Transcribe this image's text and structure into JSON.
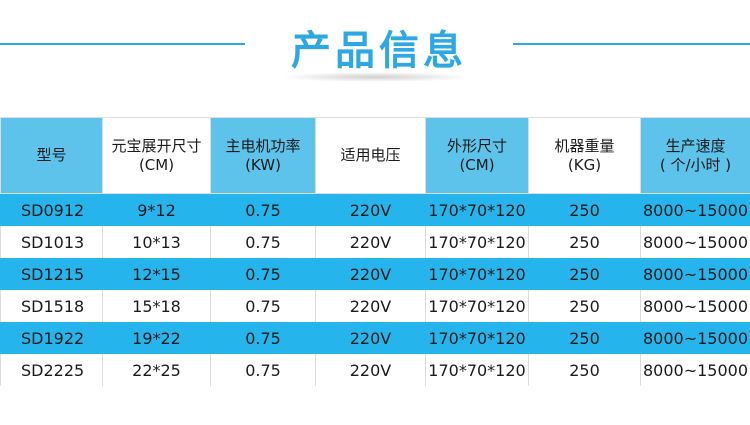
{
  "header": {
    "title": "产品信息"
  },
  "table": {
    "headers": [
      {
        "line1": "型号",
        "line2": ""
      },
      {
        "line1": "元宝展开尺寸",
        "line2": "(CM)"
      },
      {
        "line1": "主电机功率",
        "line2": "(KW)"
      },
      {
        "line1": "适用电压",
        "line2": ""
      },
      {
        "line1": "外形尺寸",
        "line2": "(CM)"
      },
      {
        "line1": "机器重量",
        "line2": "(KG)"
      },
      {
        "line1": "生产速度",
        "line2": "( 个/小时 )"
      }
    ],
    "rows": [
      [
        "SD0912",
        "9*12",
        "0.75",
        "220V",
        "170*70*120",
        "250",
        "8000~15000"
      ],
      [
        "SD1013",
        "10*13",
        "0.75",
        "220V",
        "170*70*120",
        "250",
        "8000~15000"
      ],
      [
        "SD1215",
        "12*15",
        "0.75",
        "220V",
        "170*70*120",
        "250",
        "8000~15000"
      ],
      [
        "SD1518",
        "15*18",
        "0.75",
        "220V",
        "170*70*120",
        "250",
        "8000~15000"
      ],
      [
        "SD1922",
        "19*22",
        "0.75",
        "220V",
        "170*70*120",
        "250",
        "8000~15000"
      ],
      [
        "SD2225",
        "22*25",
        "0.75",
        "220V",
        "170*70*120",
        "250",
        "8000~15000"
      ]
    ]
  },
  "colors": {
    "accent": "#2ea8e3",
    "header_blue": "#5ec3eb",
    "row_blue": "#26b4ec",
    "row_white": "#ffffff"
  }
}
